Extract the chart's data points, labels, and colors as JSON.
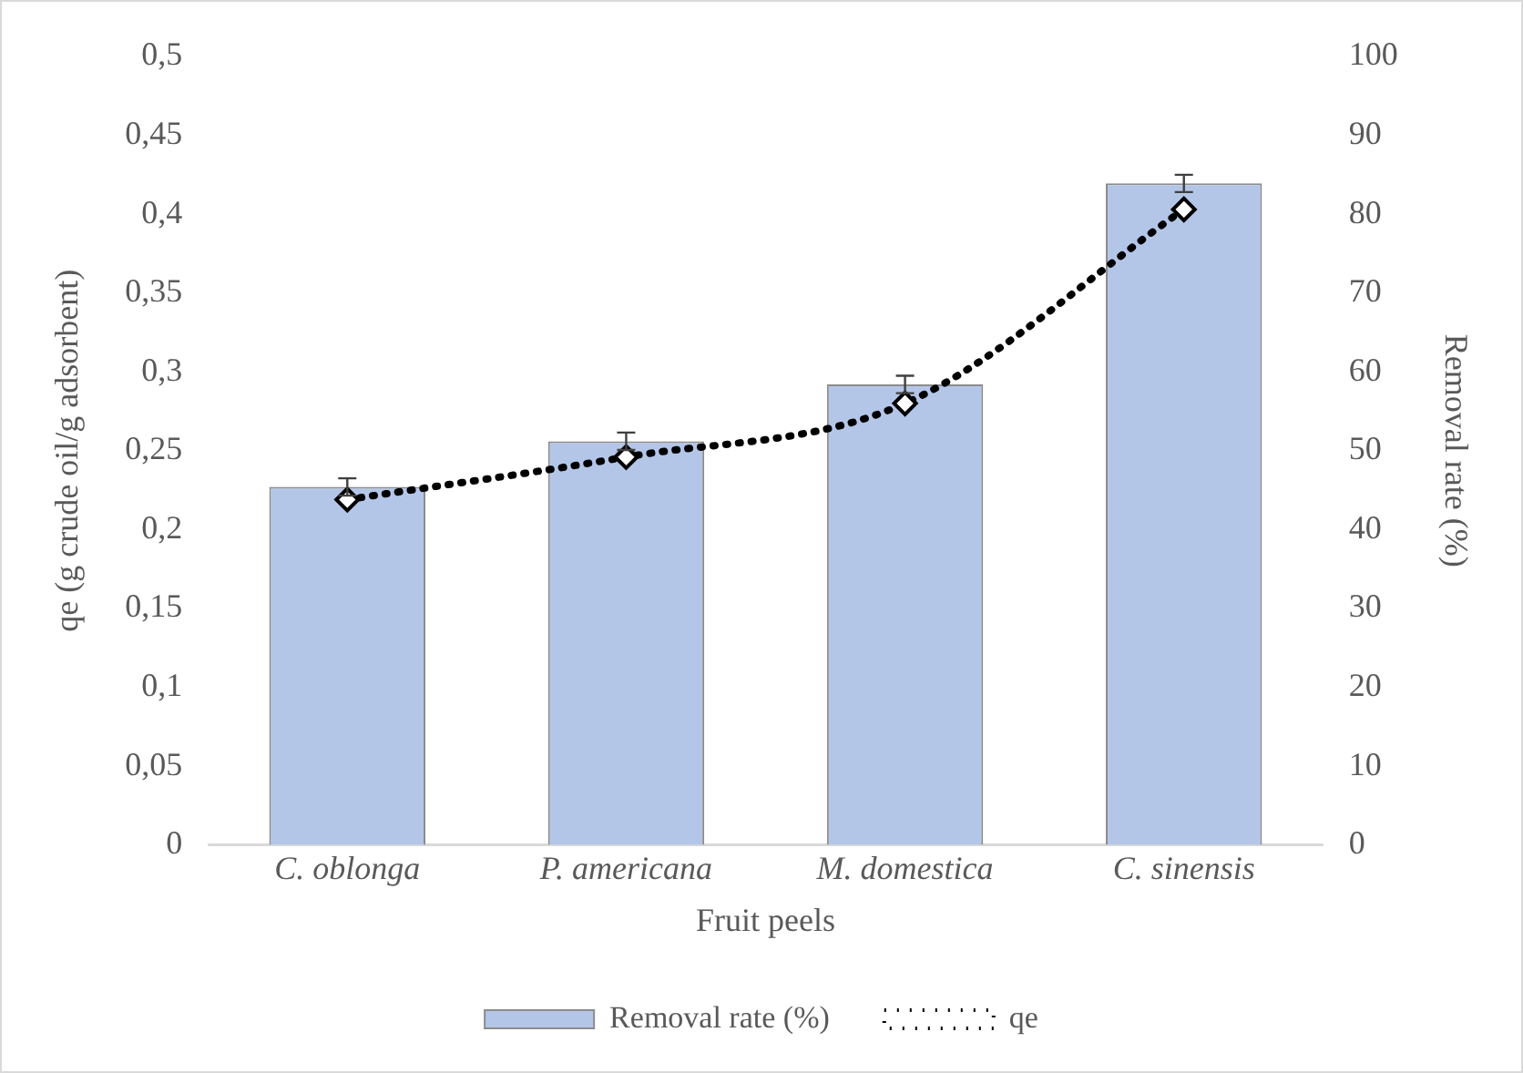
{
  "chart_data": {
    "type": "bar",
    "xlabel": "Fruit peels",
    "ylabel": "qe (g crude oil/g adsorbent)",
    "y2label": "Removal rate (%)",
    "categories": [
      "C. oblonga",
      "P. americana",
      "M. domestica",
      "C. sinensis"
    ],
    "series": [
      {
        "name": "Removal rate (%)",
        "axis": "y2",
        "color": "#b4c6e8",
        "values": [
          45.4,
          51.2,
          58.4,
          83.9
        ],
        "errors": [
          1.1,
          1.1,
          1.1,
          1.1
        ]
      },
      {
        "name": "qe",
        "type": "line",
        "color": "#000000",
        "values": [
          0.219,
          0.246,
          0.28,
          0.403
        ],
        "marker": "diamond",
        "line_style": "dotted"
      }
    ],
    "ylim": [
      0,
      0.5
    ],
    "yticks": [
      0,
      {
        "value": 0.05,
        "label": "0,05"
      },
      {
        "value": 0.1,
        "label": "0,1"
      },
      {
        "value": 0.15,
        "label": "0,15"
      },
      {
        "value": 0.2,
        "label": "0,2"
      },
      {
        "value": 0.25,
        "label": "0,25"
      },
      {
        "value": 0.3,
        "label": "0,3"
      },
      {
        "value": 0.35,
        "label": "0,35"
      },
      {
        "value": 0.4,
        "label": "0,4"
      },
      {
        "value": 0.45,
        "label": "0,45"
      },
      {
        "value": 0.5,
        "label": "0,5"
      }
    ],
    "y2lim": [
      0,
      100
    ],
    "y2ticks": [
      0,
      10,
      20,
      30,
      40,
      50,
      60,
      70,
      80,
      90,
      100
    ],
    "grid": false,
    "legend": "bottom"
  }
}
